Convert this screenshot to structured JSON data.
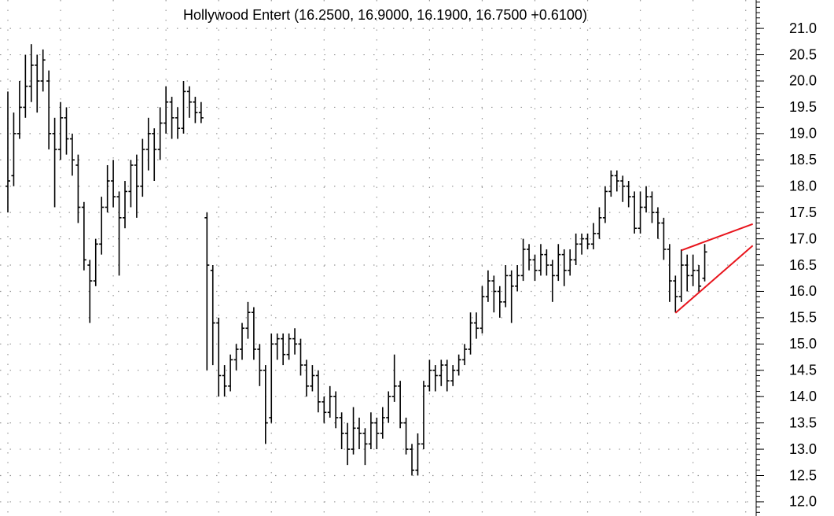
{
  "chart_data": {
    "type": "ohlc",
    "title": "Hollywood Entert (16.2500, 16.9000, 16.1900, 16.7500 +0.6100)",
    "color": "#000000",
    "ylim": [
      11.73,
      21.54
    ],
    "yticks": [
      {
        "value": 12,
        "label": "12.0"
      },
      {
        "value": 12.5,
        "label": "12.5"
      },
      {
        "value": 13,
        "label": "13.0"
      },
      {
        "value": 13.5,
        "label": "13.5"
      },
      {
        "value": 14,
        "label": "14.0"
      },
      {
        "value": 14.5,
        "label": "14.5"
      },
      {
        "value": 15,
        "label": "15.0"
      },
      {
        "value": 15.5,
        "label": "15.5"
      },
      {
        "value": 16,
        "label": "16.0"
      },
      {
        "value": 16.5,
        "label": "16.5"
      },
      {
        "value": 17,
        "label": "17.0"
      },
      {
        "value": 17.5,
        "label": "17.5"
      },
      {
        "value": 18,
        "label": "18.0"
      },
      {
        "value": 18.5,
        "label": "18.5"
      },
      {
        "value": 19,
        "label": "19.0"
      },
      {
        "value": 19.5,
        "label": "19.5"
      },
      {
        "value": 20,
        "label": "20.0"
      },
      {
        "value": 20.5,
        "label": "20.5"
      },
      {
        "value": 21,
        "label": "21.0"
      }
    ],
    "minor_tick_step": 0.1,
    "grid": true,
    "ohlc": [
      [
        18.0,
        19.8,
        17.5,
        18.1
      ],
      [
        18.2,
        19.4,
        18.0,
        19.0
      ],
      [
        19.0,
        20.0,
        18.9,
        19.5
      ],
      [
        19.5,
        20.5,
        19.3,
        19.9
      ],
      [
        19.9,
        20.7,
        19.6,
        20.3
      ],
      [
        20.3,
        20.5,
        19.4,
        20.0
      ],
      [
        20.0,
        20.6,
        19.8,
        20.4
      ],
      [
        20.0,
        20.2,
        18.7,
        19.0
      ],
      [
        19.0,
        19.3,
        17.6,
        18.7
      ],
      [
        18.7,
        19.6,
        18.5,
        19.3
      ],
      [
        19.3,
        19.5,
        18.6,
        18.9
      ],
      [
        18.9,
        19.0,
        18.2,
        18.5
      ],
      [
        18.4,
        18.6,
        17.3,
        17.6
      ],
      [
        17.6,
        17.7,
        16.4,
        16.6
      ],
      [
        16.5,
        16.6,
        15.4,
        16.2
      ],
      [
        16.2,
        17.0,
        16.1,
        16.9
      ],
      [
        16.9,
        17.8,
        16.7,
        17.6
      ],
      [
        17.6,
        18.4,
        17.5,
        18.1
      ],
      [
        18.1,
        18.5,
        17.6,
        17.8
      ],
      [
        17.8,
        17.9,
        16.3,
        17.4
      ],
      [
        17.4,
        18.1,
        17.2,
        17.9
      ],
      [
        17.9,
        18.5,
        17.6,
        18.4
      ],
      [
        18.4,
        18.6,
        17.4,
        18.0
      ],
      [
        18.0,
        18.9,
        17.8,
        18.7
      ],
      [
        18.7,
        19.3,
        18.3,
        19.0
      ],
      [
        19.0,
        19.1,
        18.1,
        18.7
      ],
      [
        18.7,
        19.5,
        18.5,
        19.2
      ],
      [
        19.2,
        19.9,
        19.0,
        19.6
      ],
      [
        19.6,
        19.7,
        18.9,
        19.3
      ],
      [
        19.3,
        19.5,
        18.9,
        19.1
      ],
      [
        19.1,
        20.0,
        19.0,
        19.8
      ],
      [
        19.8,
        19.9,
        19.3,
        19.6
      ],
      [
        19.6,
        19.7,
        19.2,
        19.4
      ],
      [
        19.4,
        19.6,
        19.2,
        19.3
      ],
      [
        17.4,
        17.5,
        14.5,
        16.5
      ],
      [
        16.4,
        16.5,
        14.6,
        15.4
      ],
      [
        15.4,
        15.5,
        14.0,
        14.4
      ],
      [
        14.4,
        14.6,
        14.0,
        14.2
      ],
      [
        14.2,
        14.8,
        14.1,
        14.7
      ],
      [
        14.7,
        15.0,
        14.5,
        14.9
      ],
      [
        14.9,
        15.4,
        14.7,
        15.3
      ],
      [
        15.3,
        15.8,
        15.1,
        15.6
      ],
      [
        15.6,
        15.7,
        14.7,
        14.9
      ],
      [
        14.9,
        15.0,
        14.2,
        14.5
      ],
      [
        14.5,
        14.6,
        13.1,
        13.5
      ],
      [
        13.6,
        15.2,
        13.5,
        15.0
      ],
      [
        15.0,
        15.2,
        14.7,
        15.1
      ],
      [
        15.1,
        15.2,
        14.6,
        14.8
      ],
      [
        14.8,
        15.2,
        14.7,
        15.1
      ],
      [
        15.1,
        15.3,
        14.8,
        15.0
      ],
      [
        15.0,
        15.1,
        14.4,
        14.6
      ],
      [
        14.6,
        14.7,
        14.0,
        14.2
      ],
      [
        14.2,
        14.6,
        14.1,
        14.4
      ],
      [
        14.4,
        14.5,
        13.7,
        13.9
      ],
      [
        13.9,
        14.0,
        13.5,
        13.7
      ],
      [
        13.7,
        14.2,
        13.6,
        14.0
      ],
      [
        14.0,
        14.1,
        13.4,
        13.6
      ],
      [
        13.6,
        13.7,
        13.0,
        13.3
      ],
      [
        13.3,
        13.5,
        12.7,
        13.0
      ],
      [
        13.0,
        13.8,
        12.9,
        13.4
      ],
      [
        13.4,
        13.6,
        13.0,
        13.3
      ],
      [
        13.3,
        13.4,
        12.7,
        13.1
      ],
      [
        13.1,
        13.7,
        13.0,
        13.5
      ],
      [
        13.5,
        13.6,
        13.0,
        13.3
      ],
      [
        13.3,
        13.8,
        13.2,
        13.6
      ],
      [
        13.6,
        14.1,
        13.5,
        14.0
      ],
      [
        14.0,
        14.8,
        13.9,
        14.2
      ],
      [
        14.2,
        14.3,
        13.4,
        13.5
      ],
      [
        13.5,
        13.6,
        12.9,
        13.0
      ],
      [
        13.0,
        13.1,
        12.5,
        12.6
      ],
      [
        12.6,
        13.3,
        12.5,
        13.1
      ],
      [
        13.1,
        14.3,
        13.0,
        14.2
      ],
      [
        14.2,
        14.7,
        14.1,
        14.5
      ],
      [
        14.5,
        14.6,
        14.1,
        14.4
      ],
      [
        14.4,
        14.7,
        14.2,
        14.6
      ],
      [
        14.6,
        14.7,
        14.1,
        14.3
      ],
      [
        14.3,
        14.6,
        14.2,
        14.5
      ],
      [
        14.5,
        14.8,
        14.4,
        14.7
      ],
      [
        14.7,
        15.0,
        14.6,
        14.9
      ],
      [
        14.9,
        15.6,
        14.8,
        15.4
      ],
      [
        15.4,
        15.6,
        15.1,
        15.3
      ],
      [
        15.3,
        16.1,
        15.2,
        15.9
      ],
      [
        15.9,
        16.4,
        15.8,
        16.2
      ],
      [
        16.2,
        16.3,
        15.6,
        16.0
      ],
      [
        16.0,
        16.1,
        15.5,
        15.8
      ],
      [
        15.8,
        16.5,
        15.7,
        16.3
      ],
      [
        16.3,
        16.4,
        15.4,
        16.1
      ],
      [
        16.1,
        16.5,
        16.0,
        16.3
      ],
      [
        16.3,
        17.0,
        16.2,
        16.8
      ],
      [
        16.8,
        16.9,
        16.4,
        16.6
      ],
      [
        16.6,
        16.7,
        16.2,
        16.4
      ],
      [
        16.4,
        16.9,
        16.3,
        16.7
      ],
      [
        16.7,
        16.8,
        16.3,
        16.5
      ],
      [
        16.5,
        16.6,
        15.8,
        16.3
      ],
      [
        16.3,
        16.9,
        16.2,
        16.7
      ],
      [
        16.7,
        16.8,
        16.1,
        16.4
      ],
      [
        16.4,
        16.8,
        16.3,
        16.6
      ],
      [
        16.6,
        17.1,
        16.5,
        16.9
      ],
      [
        16.9,
        17.1,
        16.7,
        17.0
      ],
      [
        17.0,
        17.1,
        16.8,
        16.9
      ],
      [
        16.9,
        17.3,
        16.8,
        17.1
      ],
      [
        17.1,
        17.6,
        17.0,
        17.4
      ],
      [
        17.4,
        18.0,
        17.3,
        17.9
      ],
      [
        17.9,
        18.3,
        17.8,
        18.2
      ],
      [
        18.2,
        18.3,
        17.9,
        18.1
      ],
      [
        18.1,
        18.2,
        17.7,
        18.0
      ],
      [
        18.0,
        18.1,
        17.6,
        17.8
      ],
      [
        17.8,
        17.9,
        17.1,
        17.2
      ],
      [
        17.2,
        17.9,
        17.1,
        17.6
      ],
      [
        17.6,
        18.0,
        17.5,
        17.8
      ],
      [
        17.8,
        17.9,
        17.3,
        17.5
      ],
      [
        17.5,
        17.6,
        17.0,
        17.3
      ],
      [
        17.3,
        17.4,
        16.6,
        16.8
      ],
      [
        16.8,
        16.9,
        15.8,
        16.2
      ],
      [
        16.2,
        16.3,
        15.6,
        15.9
      ],
      [
        15.9,
        16.8,
        15.8,
        16.5
      ],
      [
        16.5,
        16.7,
        16.0,
        16.3
      ],
      [
        16.3,
        16.7,
        16.1,
        16.4
      ],
      [
        16.4,
        16.5,
        16.0,
        16.1
      ],
      [
        16.25,
        16.9,
        16.19,
        16.75
      ]
    ],
    "trendlines": [
      {
        "color": "#e8141c",
        "x": [
          115,
          127.2
        ],
        "y": [
          16.78,
          17.28
        ]
      },
      {
        "color": "#e8141c",
        "x": [
          114,
          127.2
        ],
        "y": [
          15.59,
          16.87
        ]
      }
    ]
  }
}
